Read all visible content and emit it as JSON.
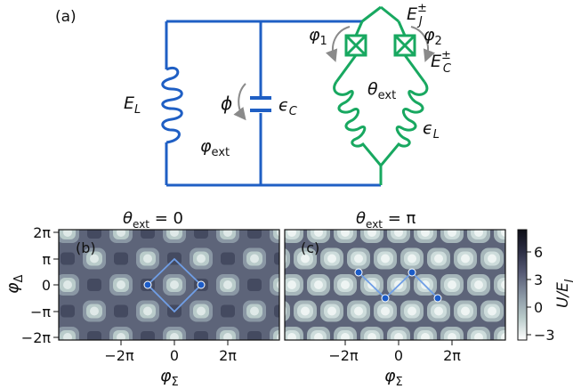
{
  "colors": {
    "blue_circuit": "#1f5fc4",
    "green_circuit": "#18a860",
    "arrow_gray": "#8a8a8a",
    "path_blue": "#6f9ee6",
    "dot_blue": "#1c5cc8",
    "map_light": "#e8f0ef",
    "map_dark": "#2a2c3e"
  },
  "circuit": {
    "panel_label": "(a)",
    "inductor_label": "E",
    "inductor_sub": "L",
    "phase_label": "ϕ",
    "capacitor_label": "ϵ",
    "capacitor_sub": "C",
    "flux_label": "φ",
    "flux_sub": "ext",
    "theta_label": "θ",
    "theta_sub": "ext",
    "green_inductor_label": "ϵ",
    "green_inductor_sub": "L",
    "jj_label": "E",
    "jj_sub": "J",
    "jj_sup": "±",
    "cj_label": "E",
    "cj_sub": "C",
    "cj_sup": "±",
    "phi1_label": "φ",
    "phi1_sub": "1",
    "phi2_label": "φ",
    "phi2_sub": "2"
  },
  "panels": [
    {
      "tag": "(b)",
      "title_symbol": "θ",
      "title_sub": "ext",
      "title_value": " = 0"
    },
    {
      "tag": "(c)",
      "title_symbol": "θ",
      "title_sub": "ext",
      "title_value": " = π"
    }
  ],
  "axes": {
    "y_label": "φ",
    "y_sub": "Δ",
    "x_label": "φ",
    "x_sub": "Σ",
    "y_ticks": [
      "2π",
      "π",
      "0",
      "−π",
      "−2π"
    ],
    "x_ticks": [
      "−2π",
      "0",
      "2π"
    ]
  },
  "colorbar": {
    "label": "U/E",
    "label_sub": "J",
    "ticks": [
      "6",
      "3",
      "0",
      "−3"
    ],
    "range": [
      -3,
      7
    ]
  }
}
